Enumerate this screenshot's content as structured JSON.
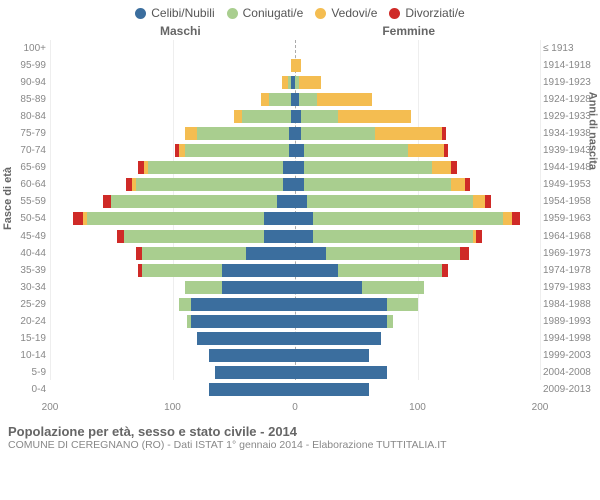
{
  "chart": {
    "type": "population-pyramid",
    "max_value": 200,
    "xtick_step": 100,
    "grid_color": "#eeeeee",
    "center_line_color": "#aaaaaa",
    "background_color": "#ffffff"
  },
  "legend": {
    "items": [
      {
        "label": "Celibi/Nubili",
        "color": "#3b6e9e"
      },
      {
        "label": "Coniugati/e",
        "color": "#a9ce8f"
      },
      {
        "label": "Vedovi/e",
        "color": "#f4bd51"
      },
      {
        "label": "Divorziati/e",
        "color": "#cf2a27"
      }
    ]
  },
  "headers": {
    "left": "Maschi",
    "right": "Femmine"
  },
  "y_left_title": "Fasce di età",
  "y_right_title": "Anni di nascita",
  "title": "Popolazione per età, sesso e stato civile - 2014",
  "subtitle": "COMUNE DI CEREGNANO (RO) - Dati ISTAT 1° gennaio 2014 - Elaborazione TUTTITALIA.IT",
  "colors": {
    "single": "#3b6e9e",
    "married": "#a9ce8f",
    "widowed": "#f4bd51",
    "divorced": "#cf2a27"
  },
  "rows": [
    {
      "age": "100+",
      "birth": "≤ 1913",
      "m": [
        0,
        0,
        0,
        0
      ],
      "f": [
        0,
        0,
        0,
        0
      ]
    },
    {
      "age": "95-99",
      "birth": "1914-1918",
      "m": [
        0,
        0,
        3,
        0
      ],
      "f": [
        0,
        0,
        5,
        0
      ]
    },
    {
      "age": "90-94",
      "birth": "1919-1923",
      "m": [
        3,
        3,
        5,
        0
      ],
      "f": [
        0,
        3,
        18,
        0
      ]
    },
    {
      "age": "85-89",
      "birth": "1924-1928",
      "m": [
        3,
        18,
        7,
        0
      ],
      "f": [
        3,
        15,
        45,
        0
      ]
    },
    {
      "age": "80-84",
      "birth": "1929-1933",
      "m": [
        3,
        40,
        7,
        0
      ],
      "f": [
        5,
        30,
        60,
        0
      ]
    },
    {
      "age": "75-79",
      "birth": "1934-1938",
      "m": [
        5,
        75,
        10,
        0
      ],
      "f": [
        5,
        60,
        55,
        3
      ]
    },
    {
      "age": "70-74",
      "birth": "1939-1943",
      "m": [
        5,
        85,
        5,
        3
      ],
      "f": [
        7,
        85,
        30,
        3
      ]
    },
    {
      "age": "65-69",
      "birth": "1944-1948",
      "m": [
        10,
        110,
        3,
        5
      ],
      "f": [
        7,
        105,
        15,
        5
      ]
    },
    {
      "age": "60-64",
      "birth": "1949-1953",
      "m": [
        10,
        120,
        3,
        5
      ],
      "f": [
        7,
        120,
        12,
        4
      ]
    },
    {
      "age": "55-59",
      "birth": "1954-1958",
      "m": [
        15,
        135,
        0,
        7
      ],
      "f": [
        10,
        135,
        10,
        5
      ]
    },
    {
      "age": "50-54",
      "birth": "1959-1963",
      "m": [
        25,
        145,
        3,
        8
      ],
      "f": [
        15,
        155,
        7,
        7
      ]
    },
    {
      "age": "45-49",
      "birth": "1964-1968",
      "m": [
        25,
        115,
        0,
        5
      ],
      "f": [
        15,
        130,
        3,
        5
      ]
    },
    {
      "age": "40-44",
      "birth": "1969-1973",
      "m": [
        40,
        85,
        0,
        5
      ],
      "f": [
        25,
        110,
        0,
        7
      ]
    },
    {
      "age": "35-39",
      "birth": "1974-1978",
      "m": [
        60,
        65,
        0,
        3
      ],
      "f": [
        35,
        85,
        0,
        5
      ]
    },
    {
      "age": "30-34",
      "birth": "1979-1983",
      "m": [
        60,
        30,
        0,
        0
      ],
      "f": [
        55,
        50,
        0,
        0
      ]
    },
    {
      "age": "25-29",
      "birth": "1984-1988",
      "m": [
        85,
        10,
        0,
        0
      ],
      "f": [
        75,
        25,
        0,
        0
      ]
    },
    {
      "age": "20-24",
      "birth": "1989-1993",
      "m": [
        85,
        3,
        0,
        0
      ],
      "f": [
        75,
        5,
        0,
        0
      ]
    },
    {
      "age": "15-19",
      "birth": "1994-1998",
      "m": [
        80,
        0,
        0,
        0
      ],
      "f": [
        70,
        0,
        0,
        0
      ]
    },
    {
      "age": "10-14",
      "birth": "1999-2003",
      "m": [
        70,
        0,
        0,
        0
      ],
      "f": [
        60,
        0,
        0,
        0
      ]
    },
    {
      "age": "5-9",
      "birth": "2004-2008",
      "m": [
        65,
        0,
        0,
        0
      ],
      "f": [
        75,
        0,
        0,
        0
      ]
    },
    {
      "age": "0-4",
      "birth": "2009-2013",
      "m": [
        70,
        0,
        0,
        0
      ],
      "f": [
        60,
        0,
        0,
        0
      ]
    }
  ],
  "xticks": [
    200,
    100,
    0,
    100,
    200
  ]
}
